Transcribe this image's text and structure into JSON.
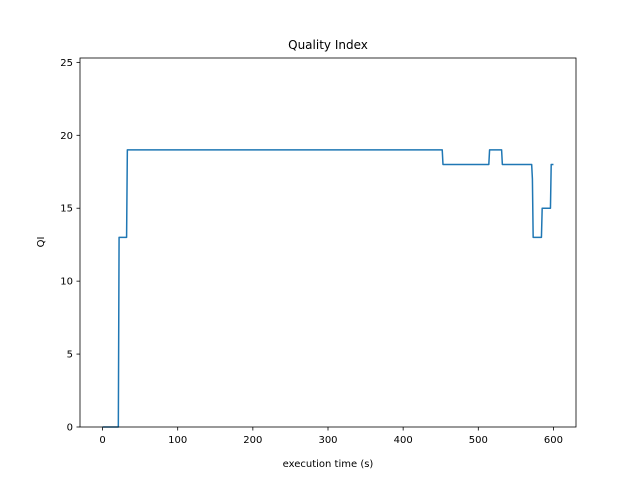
{
  "chart_data": {
    "type": "line",
    "title": "Quality Index",
    "xlabel": "execution time (s)",
    "ylabel": "QI",
    "xlim": [
      -30,
      630
    ],
    "ylim": [
      0,
      25.3
    ],
    "xticks": [
      0,
      100,
      200,
      300,
      400,
      500,
      600
    ],
    "yticks": [
      0,
      5,
      10,
      15,
      20,
      25
    ],
    "grid": false,
    "legend": "none",
    "series": [
      {
        "color": "#1f77b4",
        "x": [
          0,
          21,
          22,
          32,
          33,
          452,
          453,
          514,
          515,
          531,
          532,
          571,
          572,
          573,
          584,
          585,
          593,
          594,
          596,
          597,
          600
        ],
        "y": [
          0,
          0,
          13,
          13,
          19,
          19,
          18,
          18,
          19,
          19,
          18,
          18,
          17,
          13,
          13,
          15,
          15,
          15,
          15,
          18,
          18
        ]
      }
    ]
  }
}
